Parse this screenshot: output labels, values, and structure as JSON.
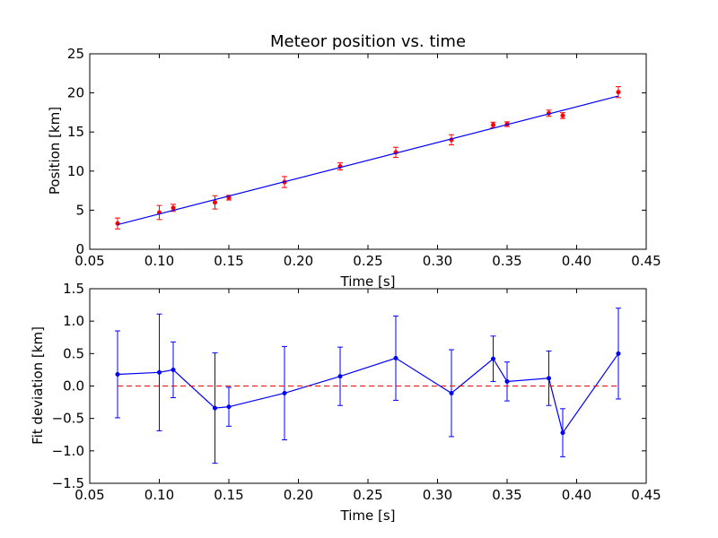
{
  "chart_data": [
    {
      "type": "scatter",
      "title": "Meteor position vs. time",
      "xlabel": "Time [s]",
      "ylabel": "Position [km]",
      "xlim": [
        0.05,
        0.45
      ],
      "ylim": [
        0,
        25
      ],
      "x_ticks": [
        "0.05",
        "0.10",
        "0.15",
        "0.20",
        "0.25",
        "0.30",
        "0.35",
        "0.40",
        "0.45"
      ],
      "y_ticks": [
        "0",
        "5",
        "10",
        "15",
        "20",
        "25"
      ],
      "grid": false,
      "series": [
        {
          "kind": "errorbar-points",
          "color": "#ff0000",
          "x": [
            0.07,
            0.1,
            0.11,
            0.14,
            0.15,
            0.19,
            0.23,
            0.27,
            0.31,
            0.34,
            0.35,
            0.38,
            0.39,
            0.43
          ],
          "y": [
            3.3,
            4.7,
            5.3,
            6.0,
            6.6,
            8.6,
            10.6,
            12.4,
            14.0,
            15.9,
            16.0,
            17.4,
            17.1,
            20.1
          ],
          "yerr": [
            0.7,
            0.9,
            0.45,
            0.85,
            0.3,
            0.7,
            0.45,
            0.65,
            0.65,
            0.35,
            0.3,
            0.4,
            0.37,
            0.7
          ]
        },
        {
          "kind": "fit-line",
          "color": "#0000ff",
          "x": [
            0.07,
            0.43
          ],
          "y": [
            3.15,
            19.6
          ]
        }
      ]
    },
    {
      "type": "line",
      "title": "",
      "xlabel": "Time [s]",
      "ylabel": "Fit deviation [km]",
      "xlim": [
        0.05,
        0.45
      ],
      "ylim": [
        -1.5,
        1.5
      ],
      "x_ticks": [
        "0.05",
        "0.10",
        "0.15",
        "0.20",
        "0.25",
        "0.30",
        "0.35",
        "0.40",
        "0.45"
      ],
      "y_ticks": [
        "−1.5",
        "−1.0",
        "−0.5",
        "0.0",
        "0.5",
        "1.0",
        "1.5"
      ],
      "grid": false,
      "series": [
        {
          "kind": "errorbar-line",
          "color": "#0000ff",
          "x": [
            0.07,
            0.1,
            0.11,
            0.14,
            0.15,
            0.19,
            0.23,
            0.27,
            0.31,
            0.34,
            0.35,
            0.38,
            0.39,
            0.43
          ],
          "y": [
            0.18,
            0.21,
            0.25,
            -0.34,
            -0.32,
            -0.11,
            0.15,
            0.43,
            -0.11,
            0.42,
            0.07,
            0.12,
            -0.72,
            0.5
          ],
          "yerr": [
            0.67,
            0.9,
            0.43,
            0.85,
            0.3,
            0.72,
            0.45,
            0.65,
            0.67,
            0.35,
            0.3,
            0.42,
            0.37,
            0.7
          ]
        },
        {
          "kind": "reference-dashed",
          "color": "#ff0000",
          "y": 0
        }
      ]
    }
  ]
}
